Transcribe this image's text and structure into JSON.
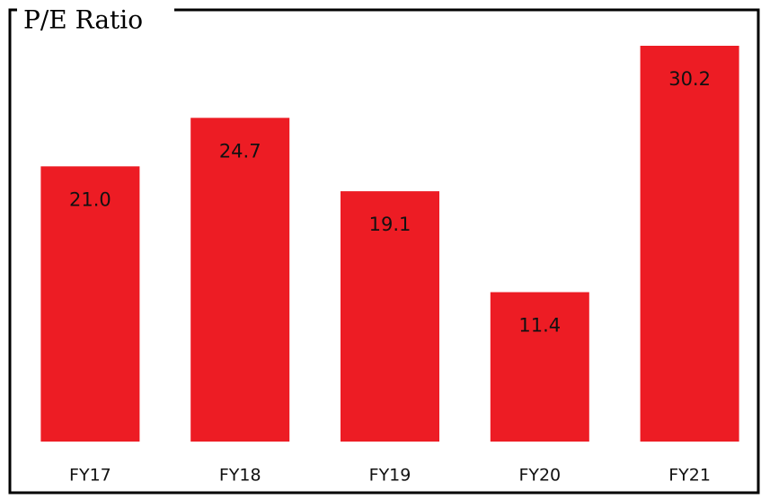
{
  "chart_data": {
    "type": "bar",
    "title": "P/E Ratio",
    "categories": [
      "FY17",
      "FY18",
      "FY19",
      "FY20",
      "FY21"
    ],
    "values": [
      21.0,
      24.7,
      19.1,
      11.4,
      30.2
    ],
    "value_labels": [
      "21.0",
      "24.7",
      "19.1",
      "11.4",
      "30.2"
    ],
    "color": "#ed1c24"
  }
}
